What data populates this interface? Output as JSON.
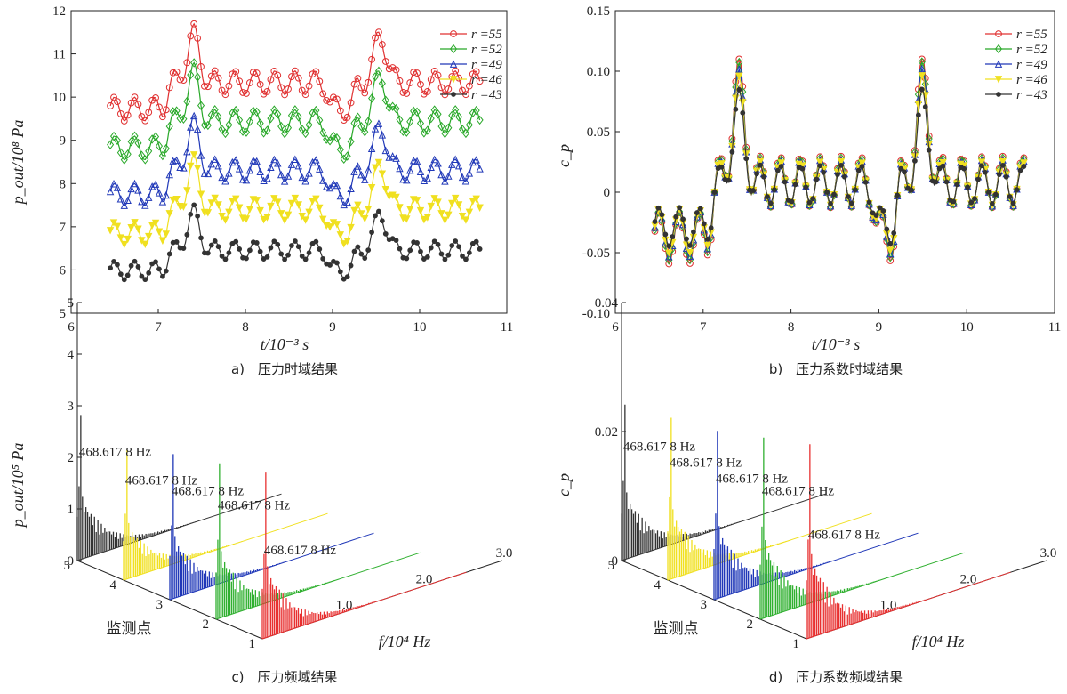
{
  "panels": [
    {
      "caption": "a)　压力时域结果",
      "chart_data": {
        "type": "line",
        "title": "",
        "xlabel": "t/10⁻³ s",
        "ylabel": "p_out/10⁸ Pa",
        "xlim": [
          6,
          11
        ],
        "ylim": [
          5,
          12
        ],
        "xticks": [
          "6",
          "7",
          "8",
          "9",
          "10",
          "11"
        ],
        "yticks": [
          "5",
          "6",
          "7",
          "8",
          "9",
          "10",
          "11",
          "12"
        ],
        "legend_position": "top-right",
        "series": [
          {
            "name": "r =55",
            "color": "#e03030",
            "marker": "circle",
            "base": 10.0,
            "amplitude": 1.3
          },
          {
            "name": "r =52",
            "color": "#28a828",
            "marker": "diamond",
            "base": 9.1,
            "amplitude": 1.3
          },
          {
            "name": "r =49",
            "color": "#2038b8",
            "marker": "triangle",
            "base": 8.0,
            "amplitude": 1.2
          },
          {
            "name": "r =46",
            "color": "#f0e020",
            "marker": "triangle-down",
            "base": 7.1,
            "amplitude": 1.2
          },
          {
            "name": "r =43",
            "color": "#333333",
            "marker": "star",
            "base": 6.2,
            "amplitude": 1.0
          }
        ],
        "x_range": [
          6.45,
          10.7
        ],
        "peak_times": [
          7.4,
          9.55
        ]
      }
    },
    {
      "caption": "b)　压力系数时域结果",
      "chart_data": {
        "type": "line",
        "title": "",
        "xlabel": "t/10⁻³ s",
        "ylabel": "c_p",
        "xlim": [
          6,
          11
        ],
        "ylim": [
          -0.1,
          0.15
        ],
        "xticks": [
          "6",
          "7",
          "8",
          "9",
          "10",
          "11"
        ],
        "yticks": [
          "-0.10",
          "-0.05",
          "0",
          "0.05",
          "0.10",
          "0.15"
        ],
        "legend_position": "top-right",
        "series": [
          {
            "name": "r =55",
            "color": "#e03030",
            "marker": "circle",
            "scale": 1.0
          },
          {
            "name": "r =52",
            "color": "#28a828",
            "marker": "diamond",
            "scale": 0.95
          },
          {
            "name": "r =49",
            "color": "#2038b8",
            "marker": "triangle",
            "scale": 0.9
          },
          {
            "name": "r =46",
            "color": "#f0e020",
            "marker": "triangle-down",
            "scale": 0.85
          },
          {
            "name": "r =43",
            "color": "#333333",
            "marker": "star",
            "scale": 0.75
          }
        ],
        "x_range": [
          6.45,
          10.65
        ],
        "peak_times": [
          7.4,
          9.5
        ],
        "peak_value": 0.11,
        "min_value": -0.08
      }
    },
    {
      "caption": "c)　压力频域结果",
      "chart_data": {
        "type": "line",
        "title": "",
        "xlabel": "f/10⁴ Hz",
        "ylabel": "p_out/10⁵ Pa",
        "depth_label": "监测点",
        "zlim": [
          0,
          5
        ],
        "zticks": [
          "0",
          "1",
          "2",
          "3",
          "4",
          "5"
        ],
        "xticks": [
          "1.0",
          "2.0",
          "3.0"
        ],
        "depth_ticks": [
          "1",
          "2",
          "3",
          "4",
          "5"
        ],
        "annotation": "468.617 8 Hz",
        "series": [
          {
            "name": "1",
            "color": "#e83030",
            "peak": 3.2
          },
          {
            "name": "2",
            "color": "#30b030",
            "peak": 3.0
          },
          {
            "name": "3",
            "color": "#2038b8",
            "peak": 2.8
          },
          {
            "name": "4",
            "color": "#f0e020",
            "peak": 2.5
          },
          {
            "name": "5",
            "color": "#333333",
            "peak": 2.8
          }
        ]
      }
    },
    {
      "caption": "d)　压力系数频域结果",
      "chart_data": {
        "type": "line",
        "title": "",
        "xlabel": "f/10⁴ Hz",
        "ylabel": "c_p",
        "depth_label": "监测点",
        "zlim": [
          0,
          0.04
        ],
        "zticks": [
          "0",
          "0.02",
          "0.04"
        ],
        "xticks": [
          "1.0",
          "2.0",
          "3.0"
        ],
        "depth_ticks": [
          "1",
          "2",
          "3",
          "4",
          "5"
        ],
        "annotation": "468.617 8 Hz",
        "series": [
          {
            "name": "1",
            "color": "#e83030",
            "peak": 0.03
          },
          {
            "name": "2",
            "color": "#30b030",
            "peak": 0.028
          },
          {
            "name": "3",
            "color": "#2038b8",
            "peak": 0.026
          },
          {
            "name": "4",
            "color": "#f0e020",
            "peak": 0.025
          },
          {
            "name": "5",
            "color": "#333333",
            "peak": 0.024
          }
        ]
      }
    }
  ]
}
